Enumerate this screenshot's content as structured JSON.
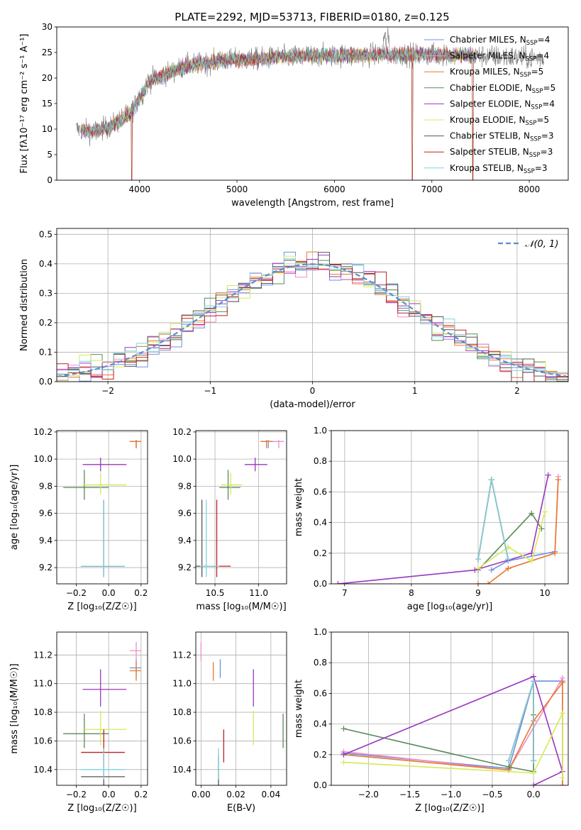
{
  "colors": {
    "Chabrier MILES": "#6d8fe0",
    "Salpeter MILES": "#f08cc8",
    "Kroupa MILES": "#e8782a",
    "Chabrier ELODIE": "#5a8a5a",
    "Salpeter ELODIE": "#9b35c0",
    "Kroupa ELODIE": "#d6e85a",
    "Chabrier STELIB": "#555555",
    "Salpeter STELIB": "#c02020",
    "Kroupa STELIB": "#7fd4dc"
  },
  "chart_data": [
    {
      "id": "spectrum",
      "type": "line",
      "title": "PLATE=2292, MJD=53713, FIBERID=0180, z=0.125",
      "xlabel": "wavelength [Angstrom, rest frame]",
      "ylabel": "Flux [fλ10⁻¹⁷ erg cm⁻² s⁻¹ A⁻¹]",
      "xlim": [
        3150,
        8400
      ],
      "ylim": [
        0,
        30
      ],
      "xticks": [
        4000,
        5000,
        6000,
        7000,
        8000
      ],
      "yticks": [
        0,
        5,
        10,
        15,
        20,
        25,
        30
      ],
      "grid": false,
      "legend_position": "top-right",
      "legend": [
        "Chabrier MILES, N_SSP=4",
        "Salpeter MILES, N_SSP=4",
        "Kroupa MILES, N_SSP=5",
        "Chabrier ELODIE, N_SSP=5",
        "Salpeter ELODIE, N_SSP=4",
        "Kroupa ELODIE, N_SSP=5",
        "Chabrier STELIB, N_SSP=3",
        "Salpeter STELIB, N_SSP=3",
        "Kroupa STELIB, N_SSP=3"
      ],
      "continuum": [
        [
          3350,
          10.0
        ],
        [
          3500,
          9.5
        ],
        [
          3700,
          10.5
        ],
        [
          3900,
          13.0
        ],
        [
          4000,
          16.0
        ],
        [
          4100,
          19.5
        ],
        [
          4300,
          21.0
        ],
        [
          4500,
          22.5
        ],
        [
          4700,
          23.0
        ],
        [
          4900,
          23.5
        ],
        [
          5100,
          23.6
        ],
        [
          5400,
          24.0
        ],
        [
          5700,
          24.3
        ],
        [
          6000,
          24.4
        ],
        [
          6300,
          24.5
        ],
        [
          6600,
          24.6
        ],
        [
          6900,
          24.6
        ],
        [
          7200,
          24.5
        ],
        [
          7500,
          24.3
        ],
        [
          7800,
          24.1
        ],
        [
          8150,
          23.9
        ]
      ],
      "model_range": [
        3400,
        7450
      ],
      "data_range": [
        3350,
        8150
      ],
      "dips_to_zero": [
        3920,
        6800,
        7420
      ]
    },
    {
      "id": "residuals",
      "type": "histogram",
      "xlabel": "(data-model)/error",
      "ylabel": "Normed distribution",
      "xlim": [
        -2.5,
        2.5
      ],
      "ylim": [
        0,
        0.52
      ],
      "xticks": [
        -2,
        -1,
        0,
        1,
        2
      ],
      "yticks": [
        0.0,
        0.1,
        0.2,
        0.3,
        0.4,
        0.5
      ],
      "grid": true,
      "legend": [
        "N(0, 1)"
      ],
      "legend_position": "top-right",
      "bins": 45
    },
    {
      "id": "age-vs-Z",
      "type": "errorbar",
      "xlabel": "Z [log₁₀(Z/Z☉)]",
      "ylabel": "age  [log₁₀(age/yr)]",
      "xlim": [
        -0.32,
        0.24
      ],
      "ylim": [
        9.08,
        10.21
      ],
      "xticks": [
        -0.2,
        0.0,
        0.2
      ],
      "yticks": [
        9.2,
        9.4,
        9.6,
        9.8,
        10.0,
        10.2
      ],
      "grid": true
    },
    {
      "id": "age-vs-mass",
      "type": "errorbar",
      "xlabel": "mass [log₁₀(M/M☉)]",
      "xlim": [
        10.28,
        11.32
      ],
      "ylim": [
        9.08,
        10.21
      ],
      "xticks": [
        10.5,
        11.0
      ],
      "yticks": [
        9.2,
        9.4,
        9.6,
        9.8,
        10.0,
        10.2
      ],
      "grid": true
    },
    {
      "id": "mass-weight-vs-age",
      "type": "line",
      "xlabel": "age  [log₁₀(age/yr)]",
      "ylabel": "mass weight",
      "xlim": [
        6.8,
        10.35
      ],
      "ylim": [
        0,
        1
      ],
      "xticks": [
        7,
        8,
        9,
        10
      ],
      "yticks": [
        0.0,
        0.2,
        0.4,
        0.6,
        0.8,
        1.0
      ],
      "grid": true,
      "series": [
        {
          "name": "Chabrier MILES",
          "x": [
            9.2,
            9.45,
            10.15
          ],
          "y": [
            0.09,
            0.15,
            0.21
          ]
        },
        {
          "name": "Salpeter MILES",
          "x": [
            9.45,
            10.15,
            10.2
          ],
          "y": [
            0.1,
            0.2,
            0.7
          ]
        },
        {
          "name": "Kroupa MILES",
          "x": [
            9.0,
            9.15,
            9.45,
            10.15,
            10.2
          ],
          "y": [
            0.0,
            0.0,
            0.1,
            0.2,
            0.68
          ]
        },
        {
          "name": "Chabrier ELODIE",
          "x": [
            9.0,
            9.8,
            9.95
          ],
          "y": [
            0.09,
            0.46,
            0.36
          ]
        },
        {
          "name": "Salpeter ELODIE",
          "x": [
            6.9,
            8.95,
            9.8,
            10.05
          ],
          "y": [
            0.0,
            0.09,
            0.2,
            0.71
          ]
        },
        {
          "name": "Kroupa ELODIE",
          "x": [
            9.0,
            9.45,
            9.8,
            10.0
          ],
          "y": [
            0.1,
            0.24,
            0.15,
            0.47
          ]
        },
        {
          "name": "Chabrier STELIB",
          "x": [
            9.0,
            9.2,
            9.45
          ],
          "y": [
            0.16,
            0.68,
            0.16
          ]
        },
        {
          "name": "Salpeter STELIB",
          "x": [
            9.0,
            9.2,
            9.45
          ],
          "y": [
            0.16,
            0.68,
            0.16
          ]
        },
        {
          "name": "Kroupa STELIB",
          "x": [
            9.0,
            9.2,
            9.45
          ],
          "y": [
            0.16,
            0.68,
            0.16
          ]
        }
      ]
    },
    {
      "id": "mass-vs-Z",
      "type": "errorbar",
      "xlabel": "Z [log₁₀(Z/Z☉)]",
      "ylabel": "mass [log₁₀(M/M☉)]",
      "xlim": [
        -0.32,
        0.24
      ],
      "ylim": [
        10.29,
        11.36
      ],
      "xticks": [
        -0.2,
        0.0,
        0.2
      ],
      "yticks": [
        10.4,
        10.6,
        10.8,
        11.0,
        11.2
      ],
      "grid": true
    },
    {
      "id": "mass-vs-EBV",
      "type": "errorbar",
      "xlabel": "E(B-V)",
      "xlim": [
        -0.003,
        0.049
      ],
      "ylim": [
        10.29,
        11.36
      ],
      "xticks": [
        0.0,
        0.02,
        0.04
      ],
      "yticks": [
        10.4,
        10.6,
        10.8,
        11.0,
        11.2
      ],
      "grid": true
    },
    {
      "id": "mass-weight-vs-Z",
      "type": "line",
      "xlabel": "Z [log₁₀(Z/Z☉)]",
      "ylabel": "mass weight",
      "xlim": [
        -2.45,
        0.42
      ],
      "ylim": [
        0,
        1
      ],
      "xticks": [
        -2.0,
        -1.5,
        -1.0,
        -0.5,
        0.0
      ],
      "yticks": [
        0.0,
        0.2,
        0.4,
        0.6,
        0.8,
        1.0
      ],
      "grid": true,
      "series": [
        {
          "name": "Chabrier MILES",
          "x": [
            -2.3,
            -0.3,
            0.0,
            0.35
          ],
          "y": [
            0.21,
            0.11,
            0.68,
            0.68
          ]
        },
        {
          "name": "Salpeter MILES",
          "x": [
            -2.3,
            -0.3,
            0.35,
            0.35
          ],
          "y": [
            0.22,
            0.1,
            0.7,
            0.0
          ]
        },
        {
          "name": "Kroupa MILES",
          "x": [
            -2.3,
            -0.3,
            0.0,
            0.35,
            0.35
          ],
          "y": [
            0.2,
            0.1,
            0.42,
            0.67,
            0.0
          ]
        },
        {
          "name": "Chabrier ELODIE",
          "x": [
            -2.3,
            -0.3,
            0.0,
            0.0
          ],
          "y": [
            0.37,
            0.12,
            0.09,
            0.46
          ]
        },
        {
          "name": "Salpeter ELODIE",
          "x": [
            -2.3,
            0.0,
            0.35,
            0.0
          ],
          "y": [
            0.2,
            0.71,
            0.09,
            0.0
          ]
        },
        {
          "name": "Kroupa ELODIE",
          "x": [
            -2.3,
            0.0,
            0.35,
            0.35
          ],
          "y": [
            0.15,
            0.08,
            0.47,
            0.05
          ]
        },
        {
          "name": "Chabrier STELIB",
          "x": [
            -0.3,
            0.0,
            0.0
          ],
          "y": [
            0.16,
            0.68,
            0.16
          ]
        },
        {
          "name": "Salpeter STELIB",
          "x": [
            -0.3,
            0.0,
            0.0
          ],
          "y": [
            0.16,
            0.68,
            0.16
          ]
        },
        {
          "name": "Kroupa STELIB",
          "x": [
            -0.3,
            0.0,
            0.0
          ],
          "y": [
            0.16,
            0.68,
            0.16
          ]
        }
      ]
    }
  ],
  "fits": [
    {
      "name": "Chabrier MILES",
      "Z": 0.17,
      "Z_err": [
        0.04,
        0.03
      ],
      "age": 10.13,
      "age_err": [
        0.05,
        0.01
      ],
      "mass": 11.11,
      "mass_err": [
        0.07,
        0.06
      ],
      "ebv": 0.011
    },
    {
      "name": "Salpeter MILES",
      "Z": 0.17,
      "Z_err": [
        0.04,
        0.03
      ],
      "age": 10.13,
      "age_err": [
        0.05,
        0.01
      ],
      "mass": 11.23,
      "mass_err": [
        0.07,
        0.06
      ],
      "ebv": 0.0
    },
    {
      "name": "Kroupa MILES",
      "Z": 0.17,
      "Z_err": [
        0.04,
        0.03
      ],
      "age": 10.13,
      "age_err": [
        0.05,
        0.01
      ],
      "mass": 11.09,
      "mass_err": [
        0.07,
        0.06
      ],
      "ebv": 0.007
    },
    {
      "name": "Chabrier ELODIE",
      "Z": -0.15,
      "Z_err": [
        0.13,
        0.15
      ],
      "age": 9.79,
      "age_err": [
        0.09,
        0.13
      ],
      "mass": 10.65,
      "mass_err": [
        0.1,
        0.14
      ],
      "ebv": 0.047
    },
    {
      "name": "Salpeter ELODIE",
      "Z": -0.05,
      "Z_err": [
        0.11,
        0.16
      ],
      "age": 9.96,
      "age_err": [
        0.05,
        0.05
      ],
      "mass": 10.96,
      "mass_err": [
        0.12,
        0.14
      ],
      "ebv": 0.03
    },
    {
      "name": "Kroupa ELODIE",
      "Z": -0.05,
      "Z_err": [
        0.11,
        0.16
      ],
      "age": 9.81,
      "age_err": [
        0.07,
        0.09
      ],
      "mass": 10.68,
      "mass_err": [
        0.11,
        0.13
      ],
      "ebv": 0.03
    },
    {
      "name": "Chabrier STELIB",
      "Z": -0.03,
      "Z_err": [
        0.14,
        0.13
      ],
      "age": 9.21,
      "age_err": [
        0.08,
        0.49
      ],
      "mass": 10.35,
      "mass_err": [
        0.07,
        0.15
      ],
      "ebv": 0.01
    },
    {
      "name": "Salpeter STELIB",
      "Z": -0.03,
      "Z_err": [
        0.14,
        0.13
      ],
      "age": 9.21,
      "age_err": [
        0.08,
        0.49
      ],
      "mass": 10.52,
      "mass_err": [
        0.07,
        0.16
      ],
      "ebv": 0.013
    },
    {
      "name": "Kroupa STELIB",
      "Z": -0.03,
      "Z_err": [
        0.14,
        0.13
      ],
      "age": 9.21,
      "age_err": [
        0.08,
        0.49
      ],
      "mass": 10.4,
      "mass_err": [
        0.07,
        0.15
      ],
      "ebv": 0.01
    }
  ]
}
